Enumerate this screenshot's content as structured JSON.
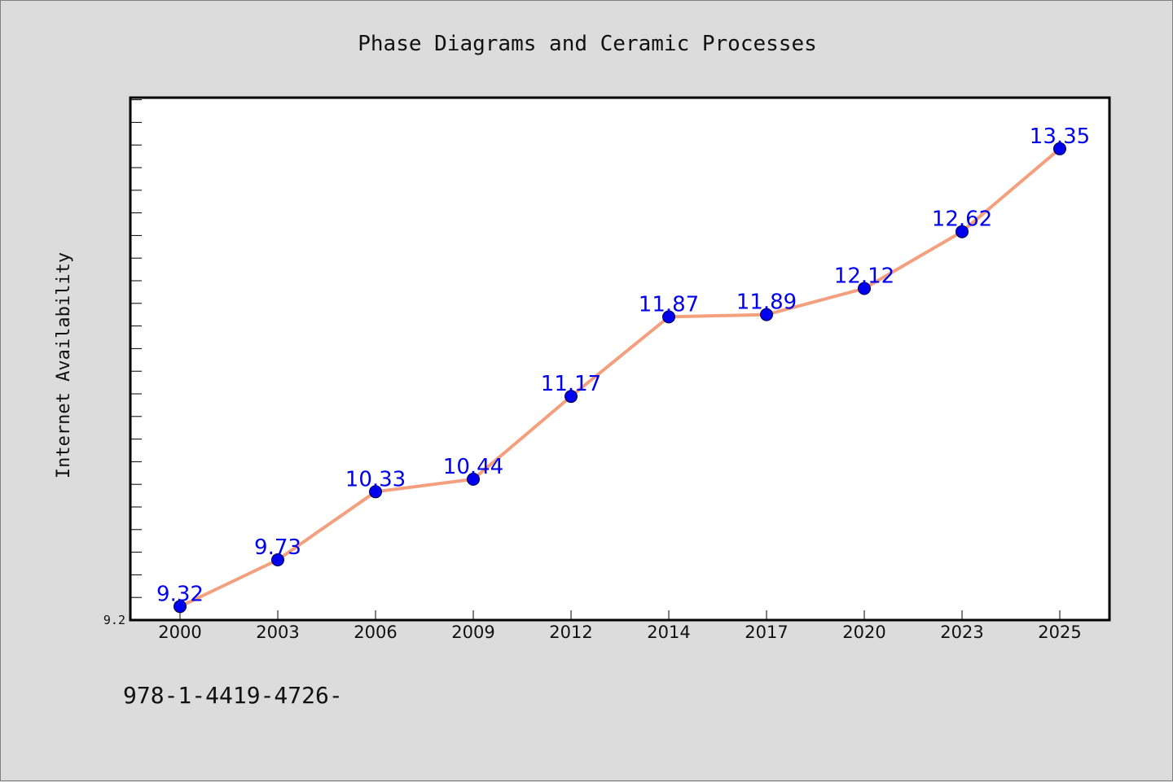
{
  "chart_data": {
    "type": "line",
    "title": "Phase Diagrams and Ceramic Processes",
    "xlabel": "",
    "ylabel": "Internet Availability",
    "categories": [
      "2000",
      "2003",
      "2006",
      "2009",
      "2012",
      "2014",
      "2017",
      "2020",
      "2023",
      "2025"
    ],
    "values": [
      9.32,
      9.73,
      10.33,
      10.44,
      11.17,
      11.87,
      11.89,
      12.12,
      12.62,
      13.35
    ],
    "value_labels": [
      "9.32",
      "9.73",
      "10.33",
      "10.44",
      "11.17",
      "11.87",
      "11.89",
      "12.12",
      "12.62",
      "13.35"
    ],
    "ylim": [
      9.2,
      13.8
    ],
    "y_tick_labels": [
      "9.2"
    ],
    "grid": false,
    "line_color": "#f4a07e",
    "marker_color": "#0000ee",
    "label_color": "#0000ee"
  },
  "footer": {
    "text": "978-1-4419-4726-"
  }
}
